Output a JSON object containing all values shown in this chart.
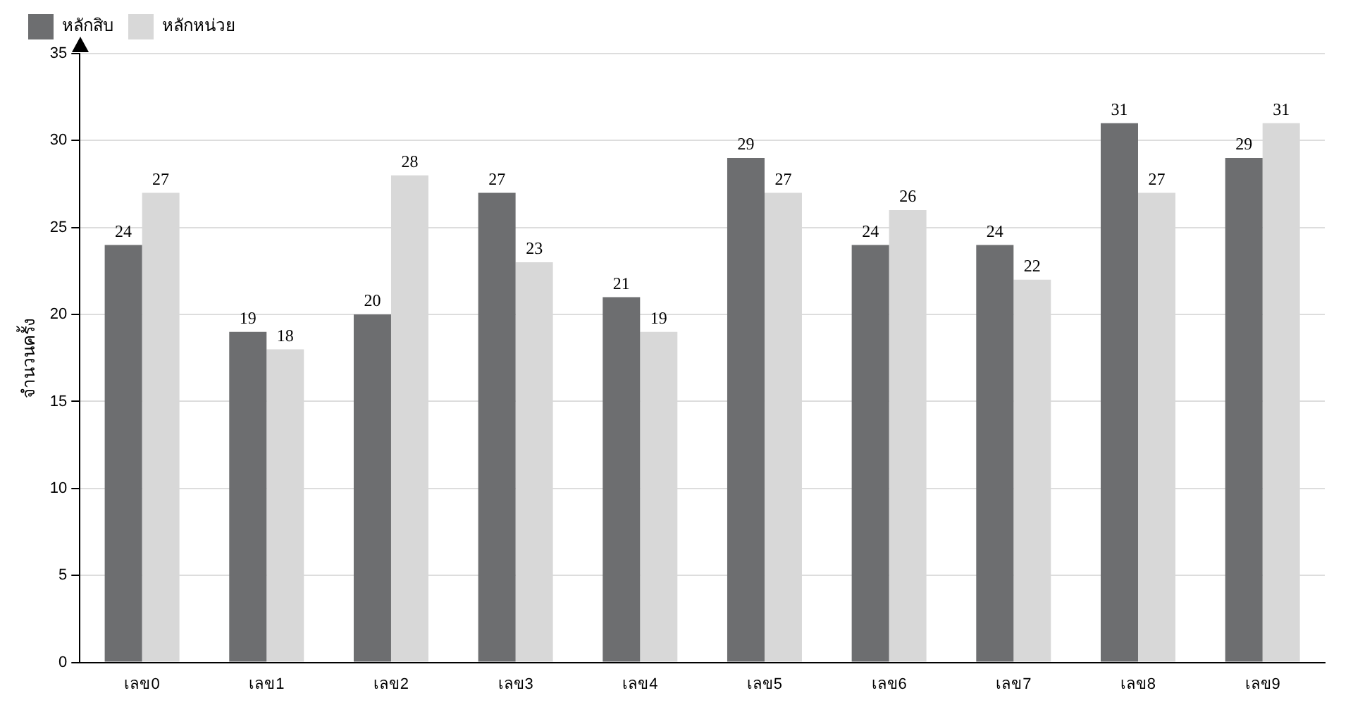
{
  "chart_data": {
    "type": "bar",
    "ylabel": "จำนวนครั้ง",
    "categories": [
      "เลข0",
      "เลข1",
      "เลข2",
      "เลข3",
      "เลข4",
      "เลข5",
      "เลข6",
      "เลข7",
      "เลข8",
      "เลข9"
    ],
    "series": [
      {
        "name": "หลักสิบ",
        "color": "#6d6e70",
        "values": [
          24,
          19,
          20,
          27,
          21,
          29,
          24,
          24,
          31,
          29
        ]
      },
      {
        "name": "หลักหน่วย",
        "color": "#d8d8d8",
        "values": [
          27,
          18,
          28,
          23,
          19,
          27,
          26,
          22,
          27,
          31
        ]
      }
    ],
    "ylim": [
      0,
      35
    ],
    "yticks": [
      0,
      5,
      10,
      15,
      20,
      25,
      30,
      35
    ],
    "grid": "y",
    "legend": "top left",
    "data_labels": true
  }
}
